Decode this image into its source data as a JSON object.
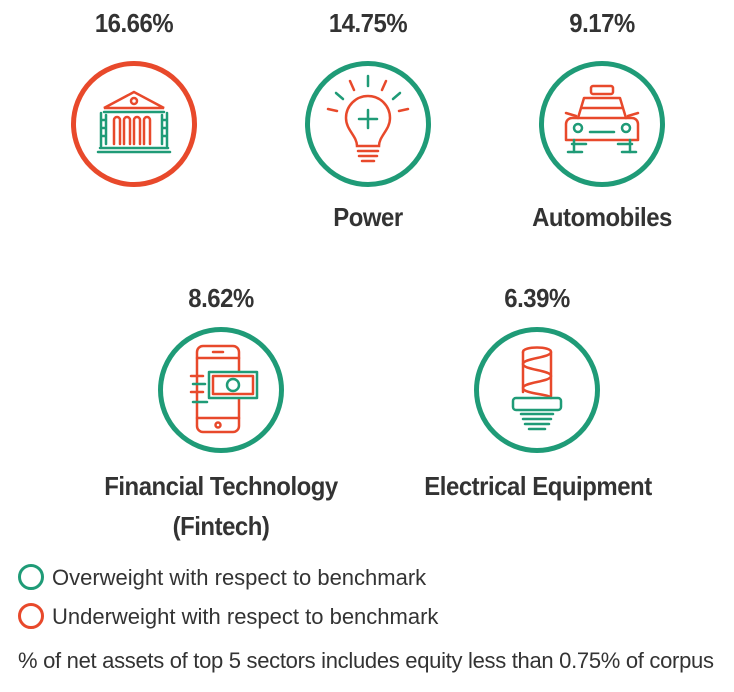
{
  "colors": {
    "overweight": "#1f9b77",
    "underweight": "#e8492b",
    "text": "#333333"
  },
  "sectors": [
    {
      "percent": "16.66%",
      "label": "",
      "weight": "underweight",
      "icon": "bank-icon"
    },
    {
      "percent": "14.75%",
      "label": "Power",
      "weight": "overweight",
      "icon": "lightbulb-icon"
    },
    {
      "percent": "9.17%",
      "label": "Automobiles",
      "weight": "overweight",
      "icon": "car-icon"
    },
    {
      "percent": "8.62%",
      "label_line1": "Financial Technology",
      "label_line2": "(Fintech)",
      "weight": "overweight",
      "icon": "mobile-payment-icon"
    },
    {
      "percent": "6.39%",
      "label": "Electrical Equipment",
      "weight": "overweight",
      "icon": "cfl-bulb-icon"
    }
  ],
  "legend": {
    "overweight": "Overweight with respect to benchmark",
    "underweight": "Underweight with respect to benchmark"
  },
  "footnote": "% of net assets of top 5 sectors includes equity less than 0.75% of corpus"
}
